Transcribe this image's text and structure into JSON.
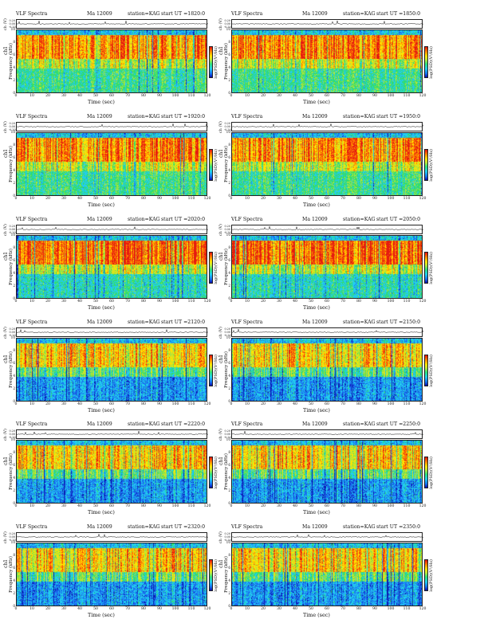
{
  "title_left": "VLF Spectra",
  "date": "Ma 12009",
  "station": "station=KAG",
  "axes": {
    "channel": "ch1",
    "wave_ylabel": "ch (V)",
    "spec_ylabel": "Frequency (kHz)",
    "xlabel": "Time (sec)",
    "colorbar_label": "log(PSD)(V²/Hz)",
    "x_ticks": [
      "0",
      "10",
      "20",
      "30",
      "40",
      "50",
      "60",
      "70",
      "80",
      "90",
      "100",
      "110",
      "120"
    ],
    "y_ticks": [
      "0",
      "2",
      "4",
      "6",
      "8",
      "10"
    ],
    "wave_ticks": [
      "0.20",
      "0.00",
      "-0.20"
    ]
  },
  "chart_data": {
    "type": "heatmap",
    "x_range": [
      0,
      120
    ],
    "y_range": [
      0,
      10
    ],
    "xlabel": "Time (sec)",
    "ylabel": "Frequency (kHz)",
    "panels": [
      {
        "start_label": "start  UT  =1820:0"
      },
      {
        "start_label": "start  UT  =1850:0"
      },
      {
        "start_label": "start  UT  =1920:0"
      },
      {
        "start_label": "start  UT  =1950:0"
      },
      {
        "start_label": "start  UT  =2020:0"
      },
      {
        "start_label": "start  UT  =2050:0"
      },
      {
        "start_label": "start  UT  =2120:0"
      },
      {
        "start_label": "start  UT  =2150:0"
      },
      {
        "start_label": "start  UT  =2220:0"
      },
      {
        "start_label": "start  UT  =2250:0"
      },
      {
        "start_label": "start  UT  =2320:0"
      },
      {
        "start_label": "start  UT  =2350:0"
      }
    ]
  }
}
